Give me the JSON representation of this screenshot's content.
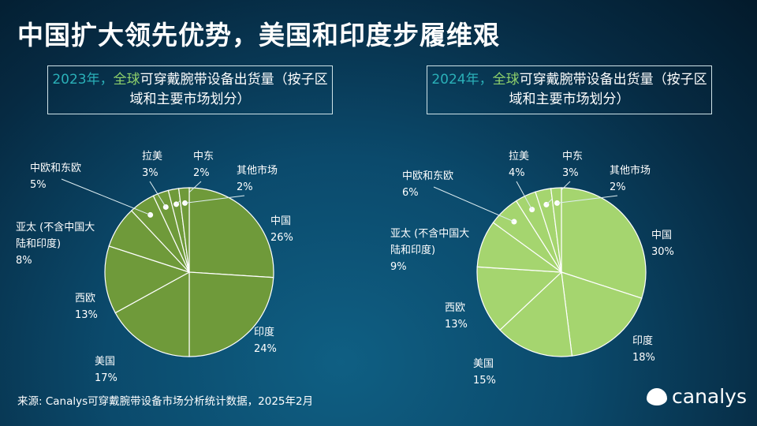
{
  "title": "中国扩大领先优势，美国和印度步履维艰",
  "chart_data": [
    {
      "type": "pie",
      "title_year": "2023年，",
      "title_global": "全球",
      "title_rest": "可穿戴腕带设备出货量（按子区域和主要市场划分）",
      "color": "#6f9a3a",
      "categories": [
        "中国",
        "印度",
        "美国",
        "西欧",
        "亚太 (不含中国大陆和印度)",
        "中欧和东欧",
        "拉美",
        "中东",
        "其他市场"
      ],
      "values": [
        26,
        24,
        17,
        13,
        8,
        5,
        3,
        2,
        2
      ],
      "unit": "%"
    },
    {
      "type": "pie",
      "title_year": "2024年，",
      "title_global": "全球",
      "title_rest": "可穿戴腕带设备出货量（按子区域和主要市场划分）",
      "color": "#a5d56f",
      "categories": [
        "中国",
        "印度",
        "美国",
        "西欧",
        "亚太 (不含中国大陆和印度)",
        "中欧和东欧",
        "拉美",
        "中东",
        "其他市场"
      ],
      "values": [
        30,
        18,
        15,
        13,
        9,
        6,
        4,
        3,
        2
      ],
      "unit": "%"
    }
  ],
  "source": "来源: Canalys可穿戴腕带设备市场分析统计数据，2025年2月",
  "logo": "canalys"
}
